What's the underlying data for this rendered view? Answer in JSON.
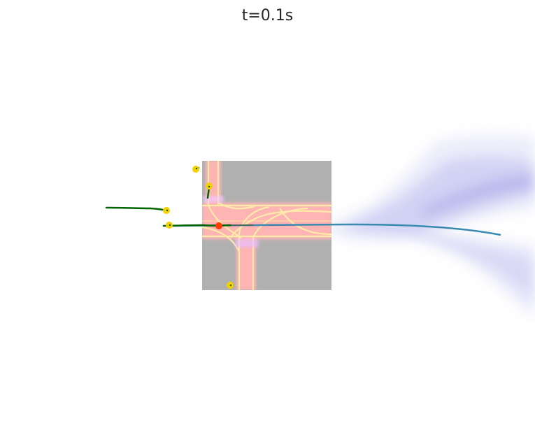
{
  "title": "t=0.1s",
  "colors": {
    "map_background": "#b0b0b0",
    "lane_fill": "#ffb0b0",
    "lane_edge": "#fff0a0",
    "agent_marker": "#f5d000",
    "agent_history": "#006400",
    "ego_marker": "#ff3c00",
    "ego_path": "#3a8ab0",
    "prediction_cloud": "#b0b0f0"
  }
}
